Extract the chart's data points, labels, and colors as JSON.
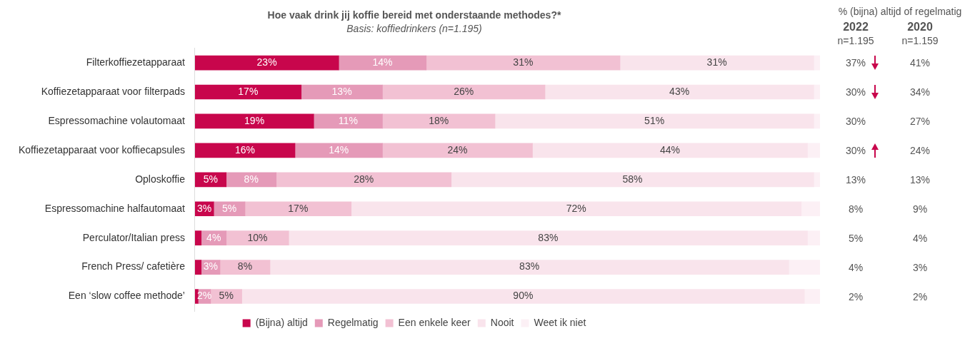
{
  "chart_data": {
    "type": "bar",
    "orientation": "horizontal",
    "stacked": true,
    "title": "Hoe vaak drink jij koffie bereid met onderstaande methodes?*",
    "subtitle": "Basis: koffiedrinkers (n=1.195)",
    "categories": [
      "Filterkoffiezetapparaat",
      "Koffiezetapparaat voor filterpads",
      "Espressomachine volautomaat",
      "Koffiezetapparaat voor koffiecapsules",
      "Oploskoffie",
      "Espressomachine halfautomaat",
      "Perculator/Italian press",
      "French Press/ cafetière",
      "Een ‘slow coffee methode’"
    ],
    "series": [
      {
        "name": "(Bijna) altijd",
        "color": "#c8064c",
        "values": [
          23,
          17,
          19,
          16,
          5,
          3,
          1,
          1,
          0.5
        ],
        "value_labels": [
          "23%",
          "17%",
          "19%",
          "16%",
          "5%",
          "3%",
          null,
          null,
          null
        ]
      },
      {
        "name": "Regelmatig",
        "color": "#e59ab8",
        "values": [
          14,
          13,
          11,
          14,
          8,
          5,
          4,
          3,
          2
        ],
        "value_labels": [
          "14%",
          "13%",
          "11%",
          "14%",
          "8%",
          "5%",
          "4%",
          "3%",
          "2%"
        ]
      },
      {
        "name": "Een enkele keer",
        "color": "#f2c1d3",
        "values": [
          31,
          26,
          18,
          24,
          28,
          17,
          10,
          8,
          5
        ],
        "value_labels": [
          "31%",
          "26%",
          "18%",
          "24%",
          "28%",
          "17%",
          "10%",
          "8%",
          "5%"
        ]
      },
      {
        "name": "Nooit",
        "color": "#f9e4ec",
        "values": [
          31,
          43,
          51,
          44,
          58,
          72,
          83,
          83,
          90
        ],
        "value_labels": [
          "31%",
          "43%",
          "51%",
          "44%",
          "58%",
          "72%",
          "83%",
          "83%",
          "90%"
        ]
      },
      {
        "name": "Weet ik niet",
        "color": "#fcf0f5",
        "values": [
          1,
          1,
          1,
          2,
          1,
          3,
          2,
          5,
          2.5
        ],
        "value_labels": [
          null,
          null,
          null,
          null,
          null,
          null,
          null,
          null,
          null
        ]
      }
    ],
    "legend": "bottom",
    "annotations": [
      "% (bijna) altijd of regelmatig",
      "2022",
      "n=1.195",
      "2020",
      "n=1.159",
      "37%",
      "41%",
      "30%",
      "34%",
      "30%",
      "27%",
      "30%",
      "24%",
      "13%",
      "13%",
      "8%",
      "9%",
      "5%",
      "4%",
      "4%",
      "3%",
      "2%",
      "2%"
    ]
  }
}
